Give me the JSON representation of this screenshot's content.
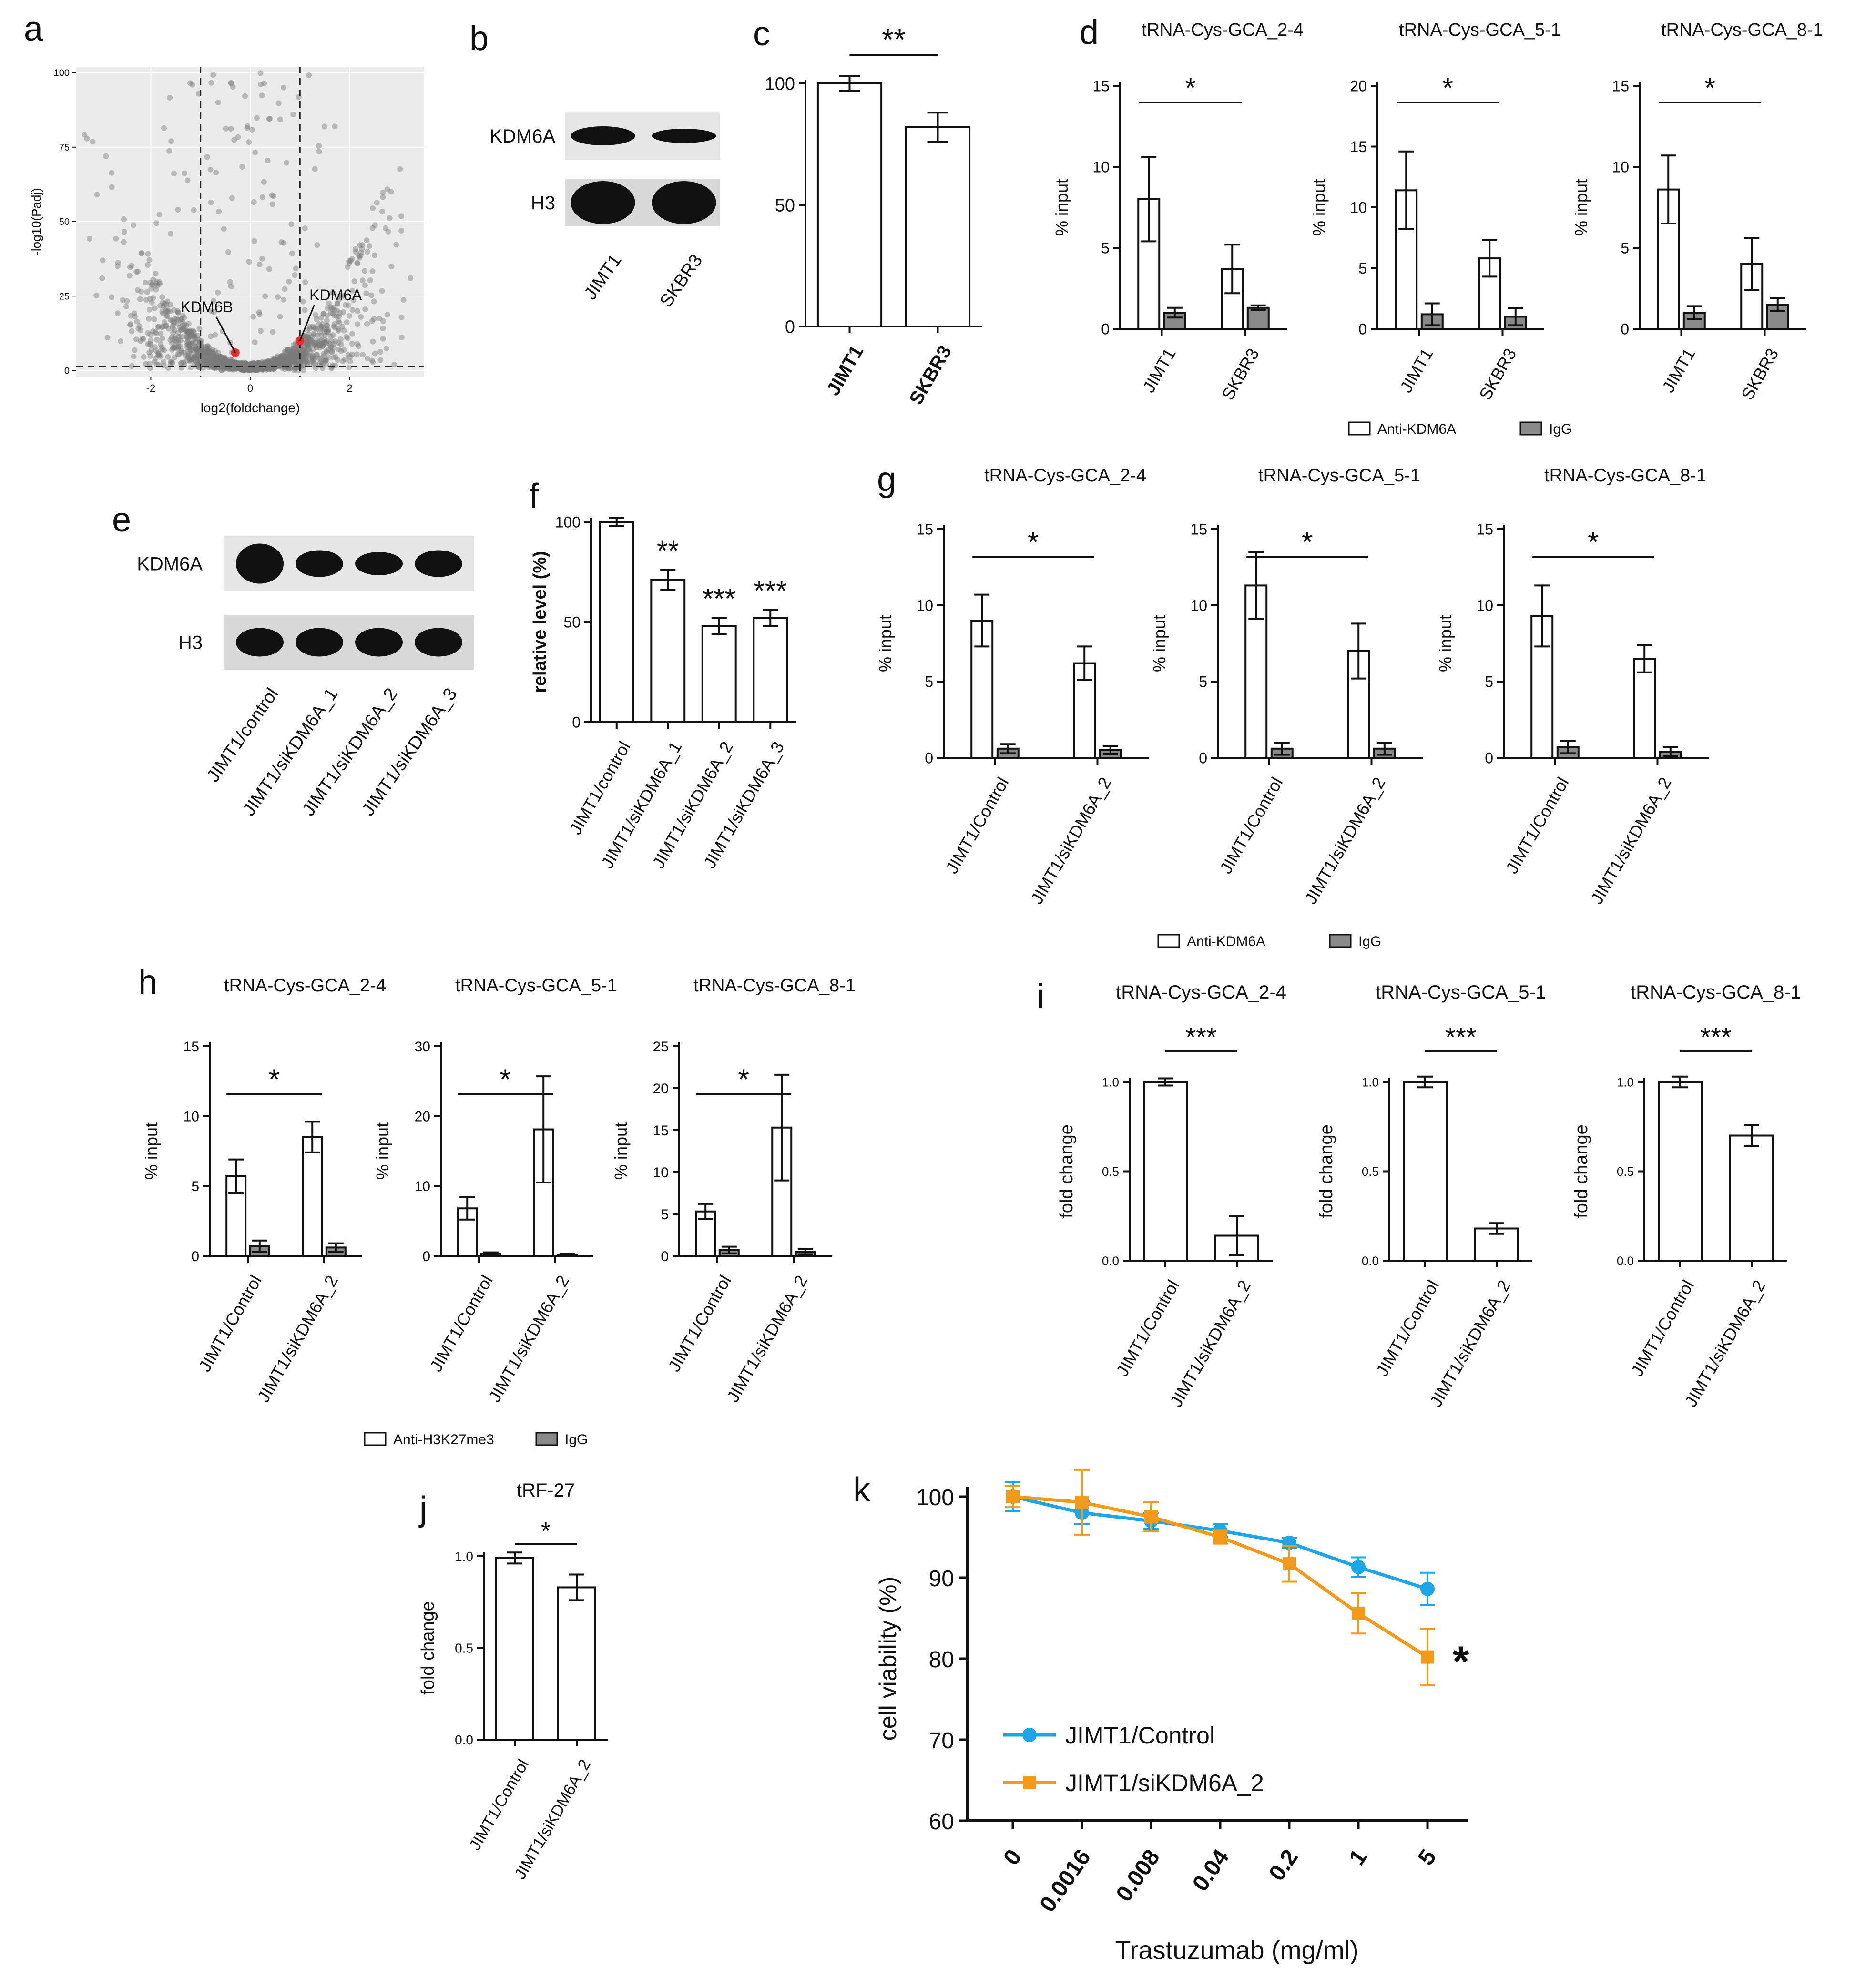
{
  "colors": {
    "axis": "#111111",
    "bar_open": "#ffffff",
    "bar_igg": "#8a8a8a",
    "volcano_bg": "#ebebeb",
    "volcano_point": "#7a7a7a",
    "highlight": "#e8302a",
    "control_line": "#1ba6e8",
    "kd_line": "#f39a1b"
  },
  "chart_data": [
    {
      "panel": "a",
      "type": "scatter",
      "title": "",
      "xlabel": "log2(foldchange)",
      "ylabel": "-log10(Padj)",
      "xlim": [
        -3.5,
        3.5
      ],
      "ylim": [
        -2,
        102
      ],
      "xticks": [
        "-2",
        "0",
        "2"
      ],
      "yticks": [
        "0",
        "25",
        "50",
        "75",
        "100"
      ],
      "thresholds": {
        "x": [
          -1,
          1
        ],
        "y": 1.3
      },
      "labeled_points": [
        {
          "label": "KDM6B",
          "x": -0.3,
          "y": 6
        },
        {
          "label": "KDM6A",
          "x": 1.0,
          "y": 10
        }
      ]
    },
    {
      "panel": "b",
      "type": "blot",
      "rows": [
        "KDM6A",
        "H3"
      ],
      "lanes": [
        "JIMT1",
        "SKBR3"
      ]
    },
    {
      "panel": "c",
      "type": "bar",
      "categories": [
        "JIMT1",
        "SKBR3"
      ],
      "values": [
        100,
        82
      ],
      "errors": [
        3,
        6
      ],
      "ylim": [
        0,
        100
      ],
      "yticks": [
        "0",
        "50",
        "100"
      ],
      "significance": [
        {
          "from": 0,
          "to": 1,
          "label": "**"
        }
      ]
    },
    {
      "panel": "d",
      "type": "grouped_bar",
      "legend": [
        "Anti-KDM6A",
        "IgG"
      ],
      "subplots": [
        {
          "title": "tRNA-Cys-GCA_2-4",
          "ylabel": "% input",
          "ylim": [
            0,
            15
          ],
          "yticks": [
            "0",
            "5",
            "10",
            "15"
          ],
          "categories": [
            "JIMT1",
            "SKBR3"
          ],
          "series": [
            {
              "name": "Anti-KDM6A",
              "values": [
                8.0,
                3.7
              ],
              "errors": [
                2.6,
                1.5
              ]
            },
            {
              "name": "IgG",
              "values": [
                1.0,
                1.3
              ],
              "errors": [
                0.3,
                0.15
              ]
            }
          ],
          "significance": [
            {
              "label": "*"
            }
          ]
        },
        {
          "title": "tRNA-Cys-GCA_5-1",
          "ylabel": "% input",
          "ylim": [
            0,
            20
          ],
          "yticks": [
            "0",
            "5",
            "10",
            "15",
            "20"
          ],
          "categories": [
            "JIMT1",
            "SKBR3"
          ],
          "series": [
            {
              "name": "Anti-KDM6A",
              "values": [
                11.4,
                5.8
              ],
              "errors": [
                3.2,
                1.5
              ]
            },
            {
              "name": "IgG",
              "values": [
                1.2,
                1.0
              ],
              "errors": [
                0.9,
                0.7
              ]
            }
          ],
          "significance": [
            {
              "label": "*"
            }
          ]
        },
        {
          "title": "tRNA-Cys-GCA_8-1",
          "ylabel": "% input",
          "ylim": [
            0,
            15
          ],
          "yticks": [
            "0",
            "5",
            "10",
            "15"
          ],
          "categories": [
            "JIMT1",
            "SKBR3"
          ],
          "series": [
            {
              "name": "Anti-KDM6A",
              "values": [
                8.6,
                4.0
              ],
              "errors": [
                2.1,
                1.6
              ]
            },
            {
              "name": "IgG",
              "values": [
                1.0,
                1.5
              ],
              "errors": [
                0.4,
                0.4
              ]
            }
          ],
          "significance": [
            {
              "label": "*"
            }
          ]
        }
      ]
    },
    {
      "panel": "e",
      "type": "blot",
      "rows": [
        "KDM6A",
        "H3"
      ],
      "lanes": [
        "JIMT1/control",
        "JIMT1/siKDM6A_1",
        "JIMT1/siKDM6A_2",
        "JIMT1/siKDM6A_3"
      ]
    },
    {
      "panel": "f",
      "type": "bar",
      "categories": [
        "JIMT1/control",
        "JIMT1/siKDM6A_1",
        "JIMT1/siKDM6A_2",
        "JIMT1/siKDM6A_3"
      ],
      "values": [
        100,
        71,
        48,
        52
      ],
      "errors": [
        2,
        5,
        4,
        4
      ],
      "ylabel": "relative level (%)",
      "ylim": [
        0,
        100
      ],
      "yticks": [
        "0",
        "50",
        "100"
      ],
      "bar_labels": [
        "",
        "**",
        "***",
        "***"
      ]
    },
    {
      "panel": "g",
      "type": "grouped_bar",
      "legend": [
        "Anti-KDM6A",
        "IgG"
      ],
      "subplots": [
        {
          "title": "tRNA-Cys-GCA_2-4",
          "ylabel": "% input",
          "ylim": [
            0,
            15
          ],
          "yticks": [
            "0",
            "5",
            "10",
            "15"
          ],
          "categories": [
            "JIMT1/Control",
            "JIMT1/siKDM6A_2"
          ],
          "series": [
            {
              "name": "Anti-KDM6A",
              "values": [
                9.0,
                6.2
              ],
              "errors": [
                1.7,
                1.1
              ]
            },
            {
              "name": "IgG",
              "values": [
                0.6,
                0.5
              ],
              "errors": [
                0.3,
                0.25
              ]
            }
          ],
          "significance": [
            {
              "label": "*"
            }
          ]
        },
        {
          "title": "tRNA-Cys-GCA_5-1",
          "ylabel": "% input",
          "ylim": [
            0,
            15
          ],
          "yticks": [
            "0",
            "5",
            "10",
            "15"
          ],
          "categories": [
            "JIMT1/Control",
            "JIMT1/siKDM6A_2"
          ],
          "series": [
            {
              "name": "Anti-KDM6A",
              "values": [
                11.3,
                7.0
              ],
              "errors": [
                2.2,
                1.8
              ]
            },
            {
              "name": "IgG",
              "values": [
                0.6,
                0.6
              ],
              "errors": [
                0.4,
                0.4
              ]
            }
          ],
          "significance": [
            {
              "label": "*"
            }
          ]
        },
        {
          "title": "tRNA-Cys-GCA_8-1",
          "ylabel": "% input",
          "ylim": [
            0,
            15
          ],
          "yticks": [
            "0",
            "5",
            "10",
            "15"
          ],
          "categories": [
            "JIMT1/Control",
            "JIMT1/siKDM6A_2"
          ],
          "series": [
            {
              "name": "Anti-KDM6A",
              "values": [
                9.3,
                6.5
              ],
              "errors": [
                2.0,
                0.9
              ]
            },
            {
              "name": "IgG",
              "values": [
                0.7,
                0.4
              ],
              "errors": [
                0.4,
                0.3
              ]
            }
          ],
          "significance": [
            {
              "label": "*"
            }
          ]
        }
      ]
    },
    {
      "panel": "h",
      "type": "grouped_bar",
      "legend": [
        "Anti-H3K27me3",
        "IgG"
      ],
      "subplots": [
        {
          "title": "tRNA-Cys-GCA_2-4",
          "ylabel": "% input",
          "ylim": [
            0,
            15
          ],
          "yticks": [
            "0",
            "5",
            "10",
            "15"
          ],
          "categories": [
            "JIMT1/Control",
            "JIMT1/siKDM6A_2"
          ],
          "series": [
            {
              "name": "Anti-H3K27me3",
              "values": [
                5.7,
                8.5
              ],
              "errors": [
                1.2,
                1.1
              ]
            },
            {
              "name": "IgG",
              "values": [
                0.7,
                0.6
              ],
              "errors": [
                0.4,
                0.3
              ]
            }
          ],
          "significance": [
            {
              "label": "*"
            }
          ]
        },
        {
          "title": "tRNA-Cys-GCA_5-1",
          "ylabel": "% input",
          "ylim": [
            0,
            30
          ],
          "yticks": [
            "0",
            "10",
            "20",
            "30"
          ],
          "categories": [
            "JIMT1/Control",
            "JIMT1/siKDM6A_2"
          ],
          "series": [
            {
              "name": "Anti-H3K27me3",
              "values": [
                6.8,
                18.1
              ],
              "errors": [
                1.6,
                7.6
              ]
            },
            {
              "name": "IgG",
              "values": [
                0.3,
                0.2
              ],
              "errors": [
                0.2,
                0.1
              ]
            }
          ],
          "significance": [
            {
              "label": "*"
            }
          ]
        },
        {
          "title": "tRNA-Cys-GCA_8-1",
          "ylabel": "% input",
          "ylim": [
            0,
            25
          ],
          "yticks": [
            "0",
            "5",
            "10",
            "15",
            "20",
            "25"
          ],
          "categories": [
            "JIMT1/Control",
            "JIMT1/siKDM6A_2"
          ],
          "series": [
            {
              "name": "Anti-H3K27me3",
              "values": [
                5.3,
                15.3
              ],
              "errors": [
                0.9,
                6.3
              ]
            },
            {
              "name": "IgG",
              "values": [
                0.7,
                0.5
              ],
              "errors": [
                0.4,
                0.3
              ]
            }
          ],
          "significance": [
            {
              "label": "*"
            }
          ]
        }
      ]
    },
    {
      "panel": "i",
      "type": "bar",
      "subplots": [
        {
          "title": "tRNA-Cys-GCA_2-4",
          "ylabel": "fold change",
          "ylim": [
            0,
            1.0
          ],
          "yticks": [
            "0.0",
            "0.5",
            "1.0"
          ],
          "categories": [
            "JIMT1/Control",
            "JIMT1/siKDM6A_2"
          ],
          "values": [
            1.0,
            0.14
          ],
          "errors": [
            0.02,
            0.11
          ],
          "significance": [
            {
              "label": "***"
            }
          ]
        },
        {
          "title": "tRNA-Cys-GCA_5-1",
          "ylabel": "fold change",
          "ylim": [
            0,
            1.0
          ],
          "yticks": [
            "0.0",
            "0.5",
            "1.0"
          ],
          "categories": [
            "JIMT1/Control",
            "JIMT1/siKDM6A_2"
          ],
          "values": [
            1.0,
            0.18
          ],
          "errors": [
            0.03,
            0.03
          ],
          "significance": [
            {
              "label": "***"
            }
          ]
        },
        {
          "title": "tRNA-Cys-GCA_8-1",
          "ylabel": "fold change",
          "ylim": [
            0,
            1.0
          ],
          "yticks": [
            "0.0",
            "0.5",
            "1.0"
          ],
          "categories": [
            "JIMT1/Control",
            "JIMT1/siKDM6A_2"
          ],
          "values": [
            1.0,
            0.7
          ],
          "errors": [
            0.03,
            0.06
          ],
          "significance": [
            {
              "label": "***"
            }
          ]
        }
      ]
    },
    {
      "panel": "j",
      "type": "bar",
      "title": "tRF-27",
      "ylabel": "fold change",
      "ylim": [
        0,
        1.0
      ],
      "yticks": [
        "0.0",
        "0.5",
        "1.0"
      ],
      "categories": [
        "JIMT1/Control",
        "JIMT1/siKDM6A_2"
      ],
      "values": [
        0.99,
        0.83
      ],
      "errors": [
        0.03,
        0.07
      ],
      "significance": [
        {
          "label": "*"
        }
      ]
    },
    {
      "panel": "k",
      "type": "line",
      "xlabel": "Trastuzumab (mg/ml)",
      "ylabel": "cell viability (%)",
      "categories": [
        "0",
        "0.0016",
        "0.008",
        "0.04",
        "0.2",
        "1",
        "5"
      ],
      "ylim": [
        60,
        100
      ],
      "yticks": [
        "60",
        "70",
        "80",
        "90",
        "100"
      ],
      "series": [
        {
          "name": "JIMT1/Control",
          "values": [
            100,
            98,
            97,
            95.8,
            94.3,
            91.3,
            88.6
          ],
          "errors": [
            1.8,
            1.4,
            1.0,
            0.8,
            0.6,
            1.2,
            2.0
          ]
        },
        {
          "name": "JIMT1/siKDM6A_2",
          "values": [
            100,
            99.3,
            97.5,
            95,
            91.7,
            85.6,
            80.2
          ],
          "errors": [
            1.3,
            4.0,
            1.8,
            0.8,
            2.2,
            2.5,
            3.5
          ]
        }
      ],
      "annotation": "*"
    }
  ]
}
